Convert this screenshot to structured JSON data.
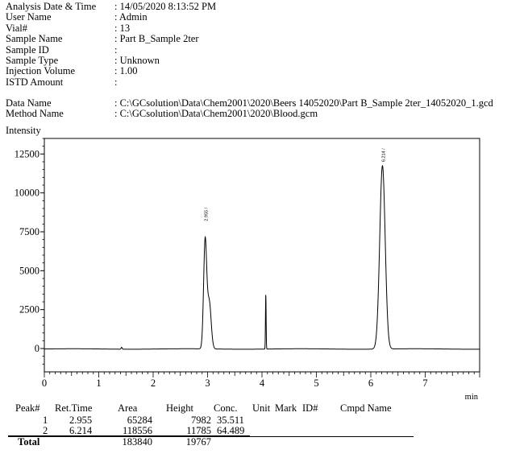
{
  "header": {
    "rows": [
      {
        "label": "Analysis Date & Time",
        "value": ": 14/05/2020 8:13:52 PM"
      },
      {
        "label": "User Name",
        "value": ": Admin"
      },
      {
        "label": "Vial#",
        "value": ": 13"
      },
      {
        "label": "Sample Name",
        "value": ": Part B_Sample 2ter"
      },
      {
        "label": "Sample ID",
        "value": ":"
      },
      {
        "label": "Sample Type",
        "value": ": Unknown"
      },
      {
        "label": "Injection Volume",
        "value": ": 1.00"
      },
      {
        "label": "ISTD Amount",
        "value": ":"
      }
    ],
    "files": [
      {
        "label": "Data Name",
        "value": ": C:\\GCsolution\\Data\\Chem2001\\2020\\Beers 14052020\\Part B_Sample 2ter_14052020_1.gcd"
      },
      {
        "label": "Method Name",
        "value": ": C:\\GCsolution\\Data\\Chem2001\\2020\\Blood.gcm"
      }
    ]
  },
  "chart_data": {
    "type": "line",
    "ylabel": "Intensity",
    "xlabel": "min",
    "xlim": [
      0,
      8
    ],
    "ylim": [
      -1500,
      13500
    ],
    "yticks": [
      0,
      2500,
      5000,
      7500,
      10000,
      12500
    ],
    "yticklabels": [
      "0",
      "2500",
      "5000",
      "7500",
      "10000",
      "12500"
    ],
    "xticks": [
      0,
      1,
      2,
      3,
      4,
      5,
      6,
      7
    ],
    "xticklabels": [
      "0",
      "1",
      "2",
      "3",
      "4",
      "5",
      "6",
      "7"
    ],
    "peaks": [
      {
        "rt": 2.955,
        "label": "2.955 /",
        "height": 7982
      },
      {
        "rt": 6.214,
        "label": "6.214 /",
        "height": 11785
      }
    ],
    "minor_peaks": [
      {
        "rt": 1.42,
        "height": 120
      },
      {
        "rt": 4.07,
        "height": 3500
      }
    ]
  },
  "peak_table": {
    "headers": [
      "Peak#",
      "Ret.Time",
      "Area",
      "Height",
      "Conc.",
      "Unit",
      "Mark",
      "ID#",
      "Cmpd Name"
    ],
    "rows": [
      {
        "peak": "1",
        "rt": "2.955",
        "area": "65284",
        "height": "7982",
        "conc": "35.511"
      },
      {
        "peak": "2",
        "rt": "6.214",
        "area": "118556",
        "height": "11785",
        "conc": "64.489"
      }
    ],
    "total": {
      "label": "Total",
      "area": "183840",
      "height": "19767"
    }
  }
}
